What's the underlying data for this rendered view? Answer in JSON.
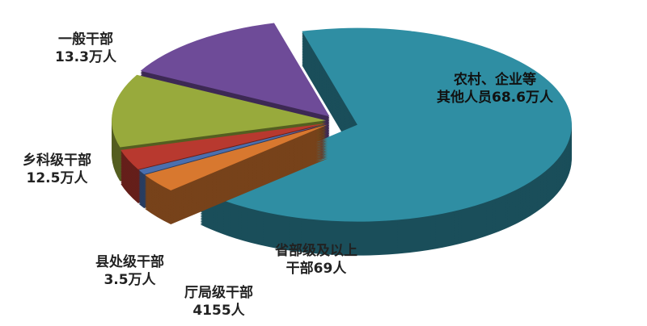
{
  "chart_data": {
    "type": "pie",
    "style": "3d-exploded",
    "unit_note": "values in 万人 (10,000 persons)",
    "slices": [
      {
        "name": "农村、企业等其他人员",
        "label_line1": "农村、企业等",
        "label_line2": "其他人员68.6万人",
        "value": 68.6,
        "color": "#2f8ea3"
      },
      {
        "name": "省部级及以上干部",
        "label_line1": "省部级及以上",
        "label_line2": "干部69人",
        "value": 0.0069,
        "color": "#d8782f"
      },
      {
        "name": "厅局级干部",
        "label_line1": "厅局级干部",
        "label_line2": "4155人",
        "value": 0.4155,
        "color": "#4b6fae"
      },
      {
        "name": "县处级干部",
        "label_line1": "县处级干部",
        "label_line2": "3.5万人",
        "value": 3.5,
        "color": "#b8392f"
      },
      {
        "name": "乡科级干部",
        "label_line1": "乡科级干部",
        "label_line2": "12.5万人",
        "value": 12.5,
        "color": "#98aa3c"
      },
      {
        "name": "一般干部",
        "label_line1": "一般干部",
        "label_line2": "13.3万人",
        "value": 13.3,
        "color": "#6e4b98"
      }
    ]
  }
}
